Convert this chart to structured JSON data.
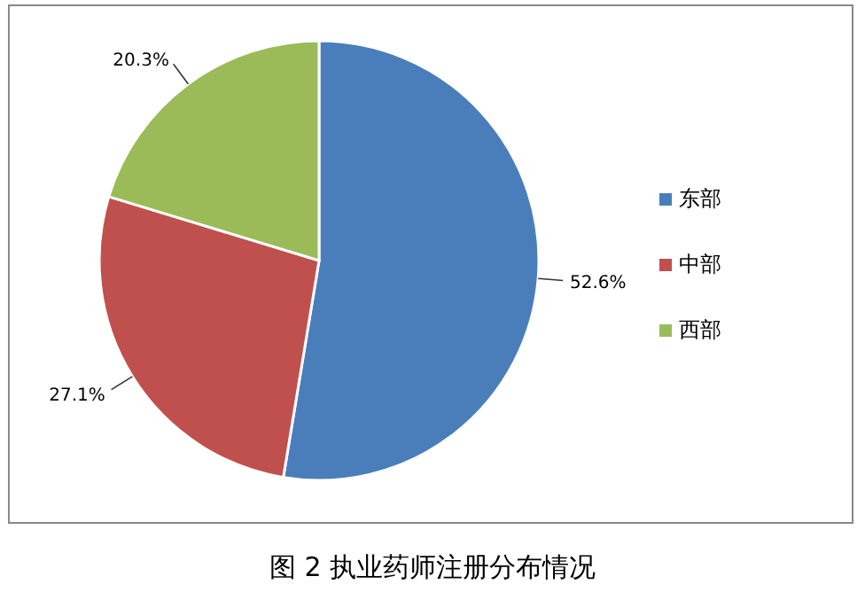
{
  "chart_data": {
    "type": "pie",
    "title": "图 2 执业药师注册分布情况",
    "categories": [
      "东部",
      "中部",
      "西部"
    ],
    "values": [
      52.6,
      27.1,
      20.3
    ],
    "colors": [
      "#4a7ebb",
      "#c0504d",
      "#9bbb59"
    ],
    "value_labels": [
      "52.6%",
      "27.1%",
      "20.3%"
    ],
    "legend": "right"
  }
}
